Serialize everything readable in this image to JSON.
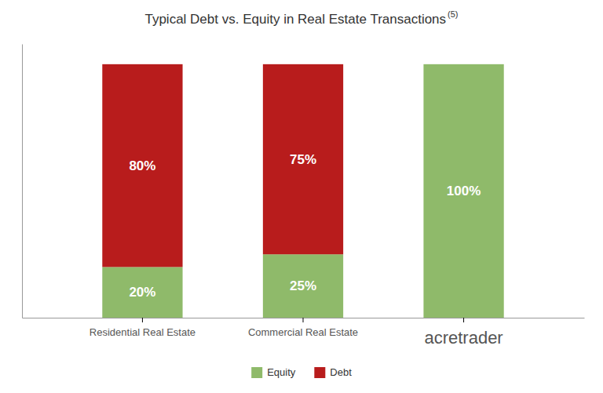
{
  "chart_data": {
    "type": "bar",
    "title": "Typical Debt vs. Equity in Real Estate Transactions",
    "annotations": [
      "(5)"
    ],
    "categories": [
      "Residential Real Estate",
      "Commercial Real Estate",
      "acretrader"
    ],
    "series": [
      {
        "name": "Equity",
        "color": "#8fba6a",
        "values": [
          20,
          25,
          100
        ],
        "value_labels": [
          "20%",
          "25%",
          "100%"
        ]
      },
      {
        "name": "Debt",
        "color": "#b81c1c",
        "values": [
          80,
          75,
          0
        ],
        "value_labels": [
          "80%",
          "75%",
          null
        ]
      }
    ],
    "stacked": true,
    "data_labels": true,
    "ylim": [
      0,
      108
    ],
    "tick_labels": "x",
    "grid": false,
    "legend": "bottom"
  }
}
